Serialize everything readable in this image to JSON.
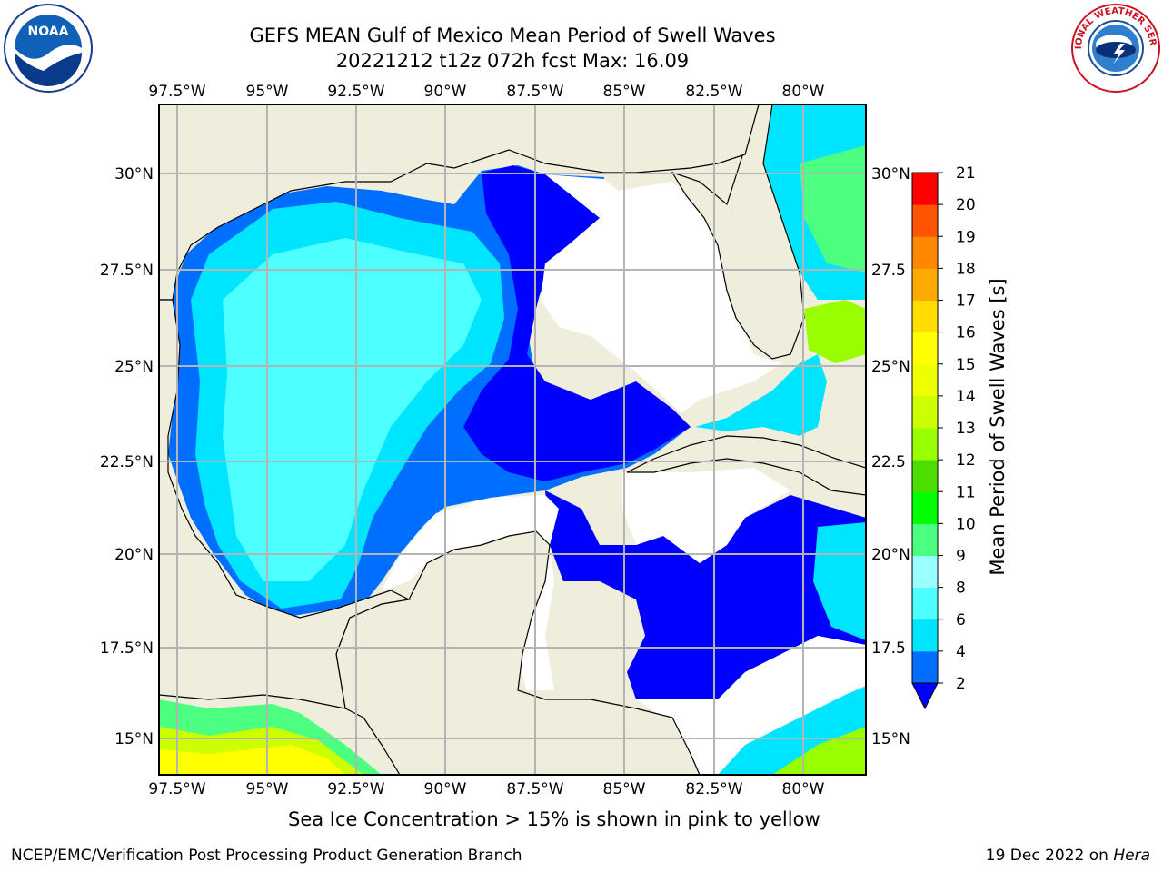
{
  "title": {
    "line1": "GEFS MEAN Gulf of Mexico Mean Period of Swell Waves",
    "line2": "20221212 t12z 072h fcst   Max: 16.09"
  },
  "logos": {
    "left": {
      "icon": "noaa-logo",
      "text": "NOAA"
    },
    "right": {
      "icon": "national-weather-service-logo",
      "text": "NATIONAL WEATHER SERVICE"
    }
  },
  "map": {
    "lon_labels": [
      "97.5°W",
      "95°W",
      "92.5°W",
      "90°W",
      "87.5°W",
      "85°W",
      "82.5°W",
      "80°W"
    ],
    "lat_labels_left": [
      "30°N",
      "27.5°N",
      "25°N",
      "22.5°N",
      "20°N",
      "17.5°N",
      "15°N"
    ],
    "lat_labels_right": [
      "30°N",
      "27.5",
      "25°N",
      "22.5",
      "20°N",
      "17.5",
      "15°N"
    ],
    "colors": {
      "land": "#efeddc",
      "no_data": "#ffffff",
      "grid": "#b4b4b4",
      "coast": "#000000"
    }
  },
  "colorbar": {
    "title": "Mean Period of Swell Waves [s]",
    "ticks": [
      "2",
      "4",
      "6",
      "8",
      "9",
      "10",
      "11",
      "12",
      "13",
      "14",
      "15",
      "16",
      "17",
      "18",
      "19",
      "20",
      "21"
    ],
    "colors": [
      "#006eff",
      "#00e5ff",
      "#4dffff",
      "#99ffff",
      "#4dff80",
      "#00ff00",
      "#4ddd00",
      "#99ff00",
      "#ccff00",
      "#eeff00",
      "#ffff00",
      "#ffdd00",
      "#ffaa00",
      "#ff8800",
      "#ff5500",
      "#ff2200",
      "#ff0000"
    ],
    "extend_color": "#0000ff"
  },
  "note": "Sea Ice Concentration > 15% is shown in pink to yellow",
  "footer": {
    "left": "NCEP/EMC/Verification Post Processing Product Generation Branch",
    "right_prefix": "19 Dec 2022 on ",
    "right_machine": "Hera"
  }
}
